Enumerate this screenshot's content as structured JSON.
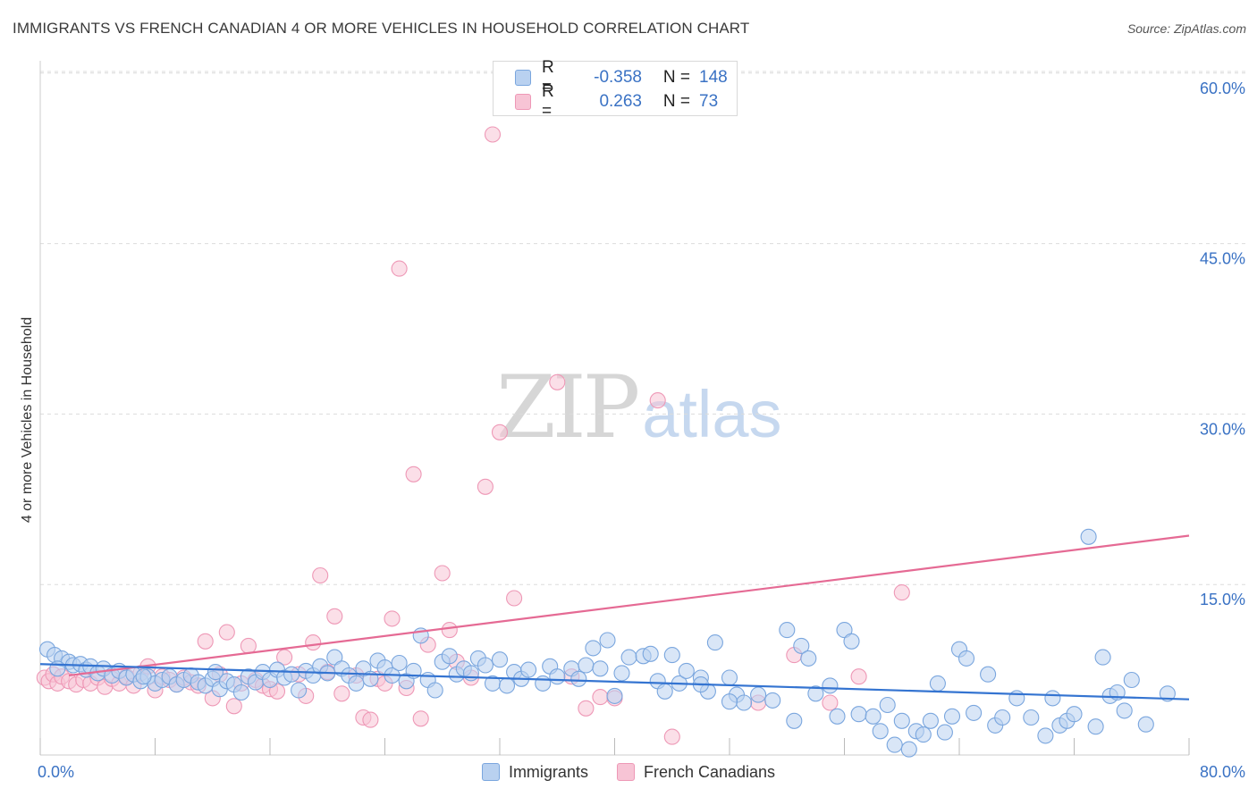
{
  "header": {
    "title": "IMMIGRANTS VS FRENCH CANADIAN 4 OR MORE VEHICLES IN HOUSEHOLD CORRELATION CHART",
    "source": "Source: ZipAtlas.com"
  },
  "watermark": {
    "zip": "ZIP",
    "atlas": "atlas"
  },
  "legend_top": {
    "rows": [
      {
        "r_label": "R =",
        "r_value": "-0.358",
        "n_label": "N =",
        "n_value": "148"
      },
      {
        "r_label": "R =",
        "r_value": "0.263",
        "n_label": "N =",
        "n_value": "73"
      }
    ]
  },
  "colors": {
    "blue_fill": "#b9d1f0",
    "blue_stroke": "#7aa6de",
    "blue_line": "#3474d1",
    "pink_fill": "#f7c4d5",
    "pink_stroke": "#ee98b6",
    "pink_line": "#e56a94",
    "grid": "#dcdcdc",
    "tick_text": "#3a72c4"
  },
  "chart_data": {
    "type": "scatter",
    "title": "IMMIGRANTS VS FRENCH CANADIAN 4 OR MORE VEHICLES IN HOUSEHOLD CORRELATION CHART",
    "xlabel": "",
    "ylabel": "4 or more Vehicles in Household",
    "xlim": [
      0,
      80
    ],
    "ylim": [
      0,
      62
    ],
    "x_tick_labels": [
      "0.0%",
      "80.0%"
    ],
    "y_ticks": [
      15,
      30,
      45,
      60
    ],
    "y_tick_labels": [
      "15.0%",
      "30.0%",
      "45.0%",
      "60.0%"
    ],
    "grid": true,
    "legend": "bottom",
    "series": [
      {
        "name": "Immigrants",
        "r": -0.358,
        "n": 148,
        "trend": {
          "x": [
            0,
            80
          ],
          "y": [
            8.0,
            4.9
          ]
        },
        "points": [
          [
            0.5,
            9.3
          ],
          [
            1.0,
            8.8
          ],
          [
            1.5,
            8.5
          ],
          [
            2.0,
            8.2
          ],
          [
            2.3,
            7.9
          ],
          [
            2.8,
            8.0
          ],
          [
            3.2,
            7.5
          ],
          [
            3.5,
            7.8
          ],
          [
            4.0,
            7.2
          ],
          [
            4.4,
            7.6
          ],
          [
            5.0,
            7.0
          ],
          [
            5.5,
            7.4
          ],
          [
            6.0,
            6.8
          ],
          [
            6.5,
            7.1
          ],
          [
            7.0,
            6.5
          ],
          [
            7.5,
            6.9
          ],
          [
            8.0,
            6.3
          ],
          [
            8.5,
            6.6
          ],
          [
            9.0,
            6.9
          ],
          [
            9.5,
            6.2
          ],
          [
            10.0,
            6.6
          ],
          [
            10.5,
            7.0
          ],
          [
            11.0,
            6.4
          ],
          [
            11.5,
            6.1
          ],
          [
            12.0,
            6.7
          ],
          [
            12.5,
            5.8
          ],
          [
            13.0,
            6.5
          ],
          [
            13.5,
            6.2
          ],
          [
            14.0,
            5.5
          ],
          [
            14.5,
            6.9
          ],
          [
            15.0,
            6.4
          ],
          [
            15.5,
            7.3
          ],
          [
            16.0,
            6.6
          ],
          [
            16.5,
            7.5
          ],
          [
            17.0,
            6.8
          ],
          [
            17.5,
            7.1
          ],
          [
            18.0,
            5.7
          ],
          [
            18.5,
            7.4
          ],
          [
            19.0,
            7.0
          ],
          [
            19.5,
            7.8
          ],
          [
            20.0,
            7.2
          ],
          [
            20.5,
            8.6
          ],
          [
            21.0,
            7.6
          ],
          [
            21.5,
            7.0
          ],
          [
            22.0,
            6.3
          ],
          [
            22.5,
            7.6
          ],
          [
            23.0,
            6.7
          ],
          [
            23.5,
            8.3
          ],
          [
            24.0,
            7.7
          ],
          [
            24.5,
            7.0
          ],
          [
            25.0,
            8.1
          ],
          [
            25.5,
            6.5
          ],
          [
            26.0,
            7.4
          ],
          [
            26.5,
            10.5
          ],
          [
            27.0,
            6.6
          ],
          [
            27.5,
            5.7
          ],
          [
            28.0,
            8.2
          ],
          [
            28.5,
            8.7
          ],
          [
            29.0,
            7.1
          ],
          [
            29.5,
            7.6
          ],
          [
            30.0,
            7.2
          ],
          [
            30.5,
            8.5
          ],
          [
            31.0,
            7.9
          ],
          [
            31.5,
            6.3
          ],
          [
            32.0,
            8.4
          ],
          [
            32.5,
            6.1
          ],
          [
            33.0,
            7.3
          ],
          [
            33.5,
            6.7
          ],
          [
            34.0,
            7.5
          ],
          [
            35.0,
            6.3
          ],
          [
            35.5,
            7.8
          ],
          [
            36.0,
            6.9
          ],
          [
            37.0,
            7.6
          ],
          [
            37.5,
            6.7
          ],
          [
            38.0,
            7.9
          ],
          [
            38.5,
            9.4
          ],
          [
            39.0,
            7.6
          ],
          [
            39.5,
            10.1
          ],
          [
            40.0,
            5.2
          ],
          [
            40.5,
            7.2
          ],
          [
            41.0,
            8.6
          ],
          [
            42.0,
            8.7
          ],
          [
            42.5,
            8.9
          ],
          [
            43.0,
            6.5
          ],
          [
            43.5,
            5.6
          ],
          [
            44.0,
            8.8
          ],
          [
            44.5,
            6.3
          ],
          [
            45.0,
            7.4
          ],
          [
            46.0,
            6.8
          ],
          [
            46.5,
            5.6
          ],
          [
            47.0,
            9.9
          ],
          [
            48.0,
            6.8
          ],
          [
            48.5,
            5.3
          ],
          [
            49.0,
            4.6
          ],
          [
            50.0,
            5.3
          ],
          [
            51.0,
            4.8
          ],
          [
            52.0,
            11.0
          ],
          [
            52.5,
            3.0
          ],
          [
            53.0,
            9.6
          ],
          [
            53.5,
            8.5
          ],
          [
            54.0,
            5.4
          ],
          [
            55.0,
            6.1
          ],
          [
            55.5,
            3.4
          ],
          [
            56.0,
            11.0
          ],
          [
            56.5,
            10.0
          ],
          [
            57.0,
            3.6
          ],
          [
            58.0,
            3.4
          ],
          [
            58.5,
            2.1
          ],
          [
            59.0,
            4.4
          ],
          [
            59.5,
            0.9
          ],
          [
            60.0,
            3.0
          ],
          [
            61.0,
            2.1
          ],
          [
            62.0,
            3.0
          ],
          [
            62.5,
            6.3
          ],
          [
            63.0,
            2.0
          ],
          [
            63.5,
            3.4
          ],
          [
            64.0,
            9.3
          ],
          [
            64.5,
            8.5
          ],
          [
            65.0,
            3.7
          ],
          [
            66.0,
            7.1
          ],
          [
            66.5,
            2.6
          ],
          [
            67.0,
            3.3
          ],
          [
            68.0,
            5.0
          ],
          [
            69.0,
            3.3
          ],
          [
            70.0,
            1.7
          ],
          [
            70.5,
            5.0
          ],
          [
            71.0,
            2.6
          ],
          [
            71.5,
            3.0
          ],
          [
            72.0,
            3.6
          ],
          [
            73.5,
            2.5
          ],
          [
            74.0,
            8.6
          ],
          [
            74.5,
            5.2
          ],
          [
            75.0,
            5.5
          ],
          [
            75.5,
            3.9
          ],
          [
            76.0,
            6.6
          ],
          [
            77.0,
            2.7
          ],
          [
            78.5,
            5.4
          ],
          [
            73.0,
            19.2
          ],
          [
            60.5,
            0.5
          ],
          [
            61.5,
            1.8
          ],
          [
            48.0,
            4.7
          ],
          [
            46.0,
            6.2
          ],
          [
            1.2,
            7.6
          ],
          [
            7.2,
            6.9
          ],
          [
            12.2,
            7.3
          ]
        ]
      },
      {
        "name": "French Canadians",
        "r": 0.263,
        "n": 73,
        "trend": {
          "x": [
            2.0,
            80
          ],
          "y": [
            7.0,
            19.3
          ]
        },
        "points": [
          [
            0.3,
            6.8
          ],
          [
            0.6,
            6.5
          ],
          [
            0.9,
            7.1
          ],
          [
            1.2,
            6.3
          ],
          [
            1.5,
            6.9
          ],
          [
            2.0,
            6.5
          ],
          [
            2.5,
            6.2
          ],
          [
            3.0,
            6.6
          ],
          [
            3.5,
            6.3
          ],
          [
            4.0,
            6.8
          ],
          [
            4.5,
            6.0
          ],
          [
            5.0,
            6.7
          ],
          [
            5.5,
            6.3
          ],
          [
            6.0,
            6.9
          ],
          [
            6.5,
            6.1
          ],
          [
            7.0,
            7.2
          ],
          [
            7.5,
            7.8
          ],
          [
            8.0,
            5.7
          ],
          [
            8.5,
            6.9
          ],
          [
            9.0,
            6.6
          ],
          [
            9.5,
            6.2
          ],
          [
            10.0,
            6.8
          ],
          [
            10.5,
            6.4
          ],
          [
            11.0,
            6.1
          ],
          [
            11.5,
            10.0
          ],
          [
            12.0,
            5.0
          ],
          [
            12.5,
            7.1
          ],
          [
            13.0,
            10.8
          ],
          [
            13.5,
            4.3
          ],
          [
            14.0,
            6.3
          ],
          [
            14.5,
            9.6
          ],
          [
            15.0,
            6.6
          ],
          [
            15.5,
            6.1
          ],
          [
            16.0,
            5.8
          ],
          [
            16.5,
            5.6
          ],
          [
            17.0,
            8.6
          ],
          [
            18.0,
            7.1
          ],
          [
            18.5,
            5.2
          ],
          [
            19.0,
            9.9
          ],
          [
            19.5,
            15.8
          ],
          [
            20.0,
            7.3
          ],
          [
            20.5,
            12.2
          ],
          [
            21.0,
            5.4
          ],
          [
            22.0,
            7.0
          ],
          [
            22.5,
            3.3
          ],
          [
            23.0,
            3.1
          ],
          [
            23.5,
            6.7
          ],
          [
            24.0,
            6.3
          ],
          [
            24.5,
            12.0
          ],
          [
            25.0,
            42.8
          ],
          [
            25.5,
            5.9
          ],
          [
            26.0,
            24.7
          ],
          [
            26.5,
            3.2
          ],
          [
            27.0,
            9.7
          ],
          [
            28.0,
            16.0
          ],
          [
            28.5,
            11.0
          ],
          [
            29.0,
            8.2
          ],
          [
            30.0,
            6.8
          ],
          [
            31.0,
            23.6
          ],
          [
            31.5,
            54.6
          ],
          [
            32.0,
            28.4
          ],
          [
            33.0,
            13.8
          ],
          [
            36.0,
            32.8
          ],
          [
            37.0,
            6.9
          ],
          [
            38.0,
            4.1
          ],
          [
            39.0,
            5.1
          ],
          [
            40.0,
            5.0
          ],
          [
            43.0,
            31.2
          ],
          [
            44.0,
            1.6
          ],
          [
            50.0,
            4.6
          ],
          [
            52.5,
            8.8
          ],
          [
            55.0,
            4.6
          ],
          [
            57.0,
            6.9
          ],
          [
            60.0,
            14.3
          ]
        ]
      }
    ]
  }
}
